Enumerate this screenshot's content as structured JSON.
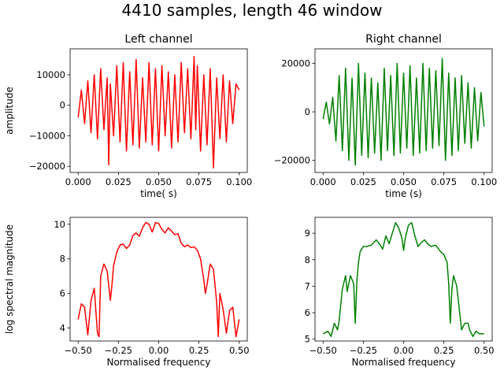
{
  "title": "4410 samples, length 46 window",
  "colors": {
    "left": "#ff0000",
    "right": "#008000",
    "axis": "#000000",
    "background": "#ffffff"
  },
  "chart_data": [
    {
      "id": "left-time",
      "type": "line",
      "title": "Left channel",
      "xlabel": "time( s)",
      "ylabel": "amplitude",
      "xlim": [
        -0.005,
        0.105
      ],
      "ylim": [
        -22000,
        18500
      ],
      "xticks": [
        0.0,
        0.025,
        0.05,
        0.075,
        0.1
      ],
      "xticklabels": [
        "0.000",
        "0.025",
        "0.050",
        "0.075",
        "0.100"
      ],
      "yticks": [
        -20000,
        -10000,
        0,
        10000
      ],
      "yticklabels": [
        "−20000",
        "−10000",
        "0",
        "10000"
      ],
      "color": "#ff0000",
      "grid": false,
      "series": [
        {
          "x": [
            0.0,
            0.002,
            0.004,
            0.006,
            0.008,
            0.01,
            0.012,
            0.014,
            0.016,
            0.018,
            0.019,
            0.02,
            0.022,
            0.024,
            0.026,
            0.028,
            0.03,
            0.032,
            0.034,
            0.036,
            0.038,
            0.04,
            0.042,
            0.044,
            0.046,
            0.048,
            0.05,
            0.052,
            0.054,
            0.056,
            0.058,
            0.06,
            0.062,
            0.064,
            0.066,
            0.068,
            0.07,
            0.072,
            0.073,
            0.074,
            0.076,
            0.078,
            0.08,
            0.082,
            0.084,
            0.086,
            0.088,
            0.09,
            0.092,
            0.094,
            0.096,
            0.098,
            0.1
          ],
          "y": [
            -4000,
            5000,
            -6000,
            8000,
            -9000,
            10000,
            -11000,
            12000,
            -8000,
            9000,
            -19500,
            7000,
            -10000,
            13000,
            -12000,
            14000,
            -15000,
            11000,
            -13000,
            15000,
            -14000,
            9000,
            -12000,
            14000,
            -13000,
            12000,
            -15000,
            13000,
            -10000,
            11000,
            -14000,
            10000,
            -12000,
            14000,
            -9000,
            12000,
            -11000,
            16000,
            -8000,
            13000,
            -15000,
            10000,
            -13000,
            12000,
            -20500,
            9000,
            -11000,
            10000,
            -12000,
            8000,
            -6000,
            7000,
            5000
          ]
        }
      ]
    },
    {
      "id": "right-time",
      "type": "line",
      "title": "Right channel",
      "xlabel": "time (s)",
      "ylabel": "",
      "xlim": [
        -0.005,
        0.105
      ],
      "ylim": [
        -25000,
        26000
      ],
      "xticks": [
        0.0,
        0.025,
        0.05,
        0.075,
        0.1
      ],
      "xticklabels": [
        "0.000",
        "0.025",
        "0.050",
        "0.075",
        "0.100"
      ],
      "yticks": [
        -20000,
        0,
        20000
      ],
      "yticklabels": [
        "−20000",
        "0",
        "20000"
      ],
      "color": "#008000",
      "grid": false,
      "series": [
        {
          "x": [
            0.0,
            0.002,
            0.004,
            0.006,
            0.008,
            0.01,
            0.012,
            0.014,
            0.016,
            0.018,
            0.02,
            0.022,
            0.024,
            0.026,
            0.028,
            0.03,
            0.032,
            0.034,
            0.036,
            0.038,
            0.04,
            0.042,
            0.044,
            0.046,
            0.048,
            0.05,
            0.052,
            0.054,
            0.056,
            0.058,
            0.06,
            0.062,
            0.064,
            0.066,
            0.068,
            0.07,
            0.072,
            0.074,
            0.076,
            0.078,
            0.08,
            0.082,
            0.084,
            0.086,
            0.088,
            0.09,
            0.092,
            0.094,
            0.096,
            0.098,
            0.1
          ],
          "y": [
            -3000,
            4000,
            -5000,
            6000,
            -12000,
            15000,
            -16000,
            18000,
            -20000,
            14000,
            -22000,
            20000,
            -18000,
            16000,
            -19000,
            14000,
            -17000,
            12000,
            -20000,
            18000,
            -16000,
            15000,
            -18000,
            20000,
            -17000,
            16000,
            -15000,
            19000,
            -18000,
            14000,
            -17000,
            20000,
            -16000,
            18000,
            -15000,
            17000,
            -14000,
            22000,
            -20000,
            16000,
            -18000,
            14000,
            -16000,
            15000,
            -13000,
            12000,
            -15000,
            10000,
            -12000,
            8000,
            -6000
          ]
        }
      ]
    },
    {
      "id": "left-spectrum",
      "type": "line",
      "title": "",
      "xlabel": "Normalised frequency",
      "ylabel": "log spectral magnitude",
      "xlim": [
        -0.55,
        0.55
      ],
      "ylim": [
        3.25,
        10.4
      ],
      "xticks": [
        -0.5,
        -0.25,
        0.0,
        0.25,
        0.5
      ],
      "xticklabels": [
        "−0.50",
        "−0.25",
        "0.00",
        "0.25",
        "0.50"
      ],
      "yticks": [
        4,
        6,
        8,
        10
      ],
      "yticklabels": [
        "4",
        "6",
        "8",
        "10"
      ],
      "color": "#ff0000",
      "grid": false,
      "series": [
        {
          "x": [
            -0.5,
            -0.48,
            -0.46,
            -0.44,
            -0.42,
            -0.4,
            -0.38,
            -0.37,
            -0.36,
            -0.34,
            -0.32,
            -0.3,
            -0.29,
            -0.28,
            -0.26,
            -0.24,
            -0.22,
            -0.2,
            -0.18,
            -0.16,
            -0.14,
            -0.12,
            -0.1,
            -0.08,
            -0.06,
            -0.04,
            -0.02,
            0.0,
            0.02,
            0.04,
            0.06,
            0.08,
            0.1,
            0.12,
            0.14,
            0.16,
            0.18,
            0.2,
            0.22,
            0.24,
            0.26,
            0.28,
            0.29,
            0.3,
            0.32,
            0.34,
            0.36,
            0.37,
            0.38,
            0.4,
            0.42,
            0.44,
            0.46,
            0.48,
            0.5
          ],
          "y": [
            4.5,
            5.4,
            5.2,
            3.6,
            5.6,
            6.3,
            3.7,
            3.5,
            7.0,
            7.7,
            7.3,
            5.6,
            6.5,
            7.6,
            8.4,
            8.8,
            8.85,
            8.6,
            8.8,
            9.35,
            9.5,
            9.3,
            9.8,
            10.1,
            10.0,
            9.55,
            10.1,
            10.05,
            9.7,
            9.5,
            9.8,
            9.6,
            9.4,
            9.45,
            8.9,
            8.7,
            8.8,
            8.65,
            8.7,
            8.5,
            8.0,
            6.8,
            6.0,
            6.5,
            7.7,
            7.4,
            5.5,
            3.5,
            6.0,
            5.1,
            3.7,
            5.0,
            5.2,
            3.5,
            4.5
          ]
        }
      ]
    },
    {
      "id": "right-spectrum",
      "type": "line",
      "title": "",
      "xlabel": "Normalised frequency",
      "ylabel": "",
      "xlim": [
        -0.55,
        0.55
      ],
      "ylim": [
        4.93,
        9.6
      ],
      "xticks": [
        -0.5,
        -0.25,
        0.0,
        0.25,
        0.5
      ],
      "xticklabels": [
        "−0.50",
        "−0.25",
        "0.00",
        "0.25",
        "0.50"
      ],
      "yticks": [
        5,
        6,
        7,
        8,
        9
      ],
      "yticklabels": [
        "5",
        "6",
        "7",
        "8",
        "9"
      ],
      "color": "#008000",
      "grid": false,
      "series": [
        {
          "x": [
            -0.5,
            -0.47,
            -0.45,
            -0.43,
            -0.41,
            -0.4,
            -0.38,
            -0.36,
            -0.35,
            -0.33,
            -0.31,
            -0.3,
            -0.29,
            -0.28,
            -0.27,
            -0.25,
            -0.23,
            -0.2,
            -0.17,
            -0.15,
            -0.13,
            -0.11,
            -0.09,
            -0.07,
            -0.05,
            -0.03,
            -0.01,
            0.0,
            0.01,
            0.03,
            0.05,
            0.07,
            0.09,
            0.11,
            0.13,
            0.15,
            0.17,
            0.2,
            0.23,
            0.25,
            0.27,
            0.28,
            0.29,
            0.3,
            0.31,
            0.33,
            0.35,
            0.36,
            0.38,
            0.4,
            0.41,
            0.43,
            0.45,
            0.47,
            0.5
          ],
          "y": [
            5.2,
            5.3,
            5.1,
            5.6,
            5.35,
            5.7,
            6.9,
            7.4,
            6.8,
            7.4,
            7.1,
            5.6,
            7.2,
            7.9,
            8.3,
            8.5,
            8.5,
            8.55,
            8.75,
            8.6,
            8.4,
            8.9,
            8.6,
            9.0,
            9.4,
            9.2,
            8.8,
            8.35,
            8.8,
            9.3,
            9.4,
            8.9,
            8.5,
            8.65,
            8.75,
            8.6,
            8.5,
            8.55,
            8.3,
            8.2,
            7.9,
            7.1,
            5.6,
            6.9,
            7.4,
            7.0,
            5.9,
            5.35,
            5.6,
            5.6,
            5.35,
            5.1,
            5.3,
            5.2,
            5.2
          ]
        }
      ]
    }
  ]
}
